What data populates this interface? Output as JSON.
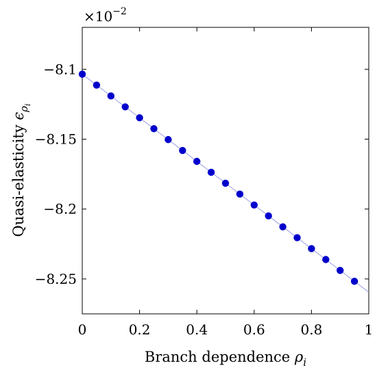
{
  "chart_data": {
    "type": "scatter",
    "title": "",
    "xlabel": "Branch dependence",
    "xlabel_symbol": "ρ",
    "xlabel_subscript": "i",
    "ylabel": "Quasi-elasticity",
    "ylabel_symbol": "ϵ",
    "ylabel_subscript": "ρ",
    "ylabel_subsubscript": "i",
    "y_multiplier_base": "×10",
    "y_multiplier_exponent": "−2",
    "xlim": [
      0,
      1
    ],
    "ylim": [
      -8.275,
      -8.07
    ],
    "x_ticks": [
      0,
      0.2,
      0.4,
      0.6,
      0.8,
      1
    ],
    "x_tick_labels": [
      "0",
      "0.2",
      "0.4",
      "0.6",
      "0.8",
      "1"
    ],
    "y_ticks": [
      -8.1,
      -8.15,
      -8.2,
      -8.25
    ],
    "y_tick_labels": [
      "−8.1",
      "−8.15",
      "−8.2",
      "−8.25"
    ],
    "grid": false,
    "marker_color": "#0000cc",
    "line_color": "#9aa0e6",
    "fit_line": {
      "x": [
        0,
        1
      ],
      "y": [
        -8.1035,
        -8.2595
      ]
    },
    "series": [
      {
        "x": [
          0,
          0.05,
          0.1,
          0.15,
          0.2,
          0.25,
          0.3,
          0.35,
          0.4,
          0.45,
          0.5,
          0.55,
          0.6,
          0.65,
          0.7,
          0.75,
          0.8,
          0.85,
          0.9,
          0.95
        ],
        "y": [
          -8.1035,
          -8.1113,
          -8.1191,
          -8.1269,
          -8.1347,
          -8.1425,
          -8.1503,
          -8.1581,
          -8.1659,
          -8.1737,
          -8.1815,
          -8.1893,
          -8.1971,
          -8.2049,
          -8.2127,
          -8.2205,
          -8.2283,
          -8.2361,
          -8.2439,
          -8.2517
        ]
      }
    ]
  }
}
